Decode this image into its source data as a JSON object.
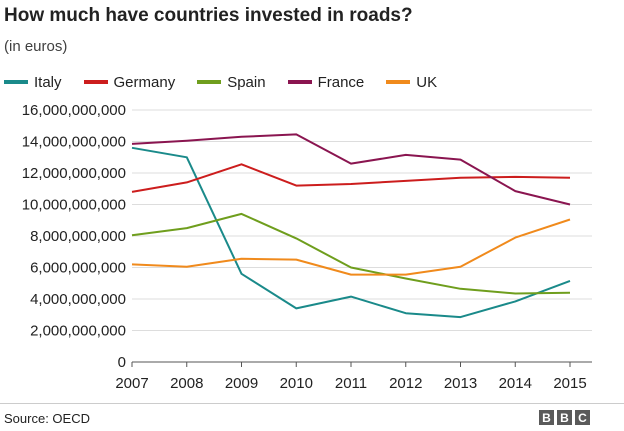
{
  "chart_data": {
    "type": "line",
    "title": "How much have countries invested in roads?",
    "subtitle": "(in euros)",
    "source": "Source: OECD",
    "logo_letters": [
      "B",
      "B",
      "C"
    ],
    "x": [
      "2007",
      "2008",
      "2009",
      "2010",
      "2011",
      "2012",
      "2013",
      "2014",
      "2015"
    ],
    "ylim": [
      0,
      16000000000
    ],
    "yticks": [
      "0",
      "2,000,000,000",
      "4,000,000,000",
      "6,000,000,000",
      "8,000,000,000",
      "10,000,000,000",
      "12,000,000,000",
      "14,000,000,000",
      "16,000,000,000"
    ],
    "ytick_values": [
      0,
      2000000000,
      4000000000,
      6000000000,
      8000000000,
      10000000000,
      12000000000,
      14000000000,
      16000000000
    ],
    "grid": true,
    "legend_position": "top-left",
    "series": [
      {
        "name": "Italy",
        "color": "#1a8a8a",
        "values": [
          13600000000,
          13000000000,
          5600000000,
          3400000000,
          4150000000,
          3100000000,
          2850000000,
          3850000000,
          5150000000
        ]
      },
      {
        "name": "Germany",
        "color": "#cc1d1d",
        "values": [
          10800000000,
          11400000000,
          12550000000,
          11200000000,
          11300000000,
          11500000000,
          11700000000,
          11750000000,
          11700000000
        ]
      },
      {
        "name": "Spain",
        "color": "#6f9e1d",
        "values": [
          8050000000,
          8500000000,
          9400000000,
          7850000000,
          6000000000,
          5300000000,
          4650000000,
          4350000000,
          4400000000
        ]
      },
      {
        "name": "France",
        "color": "#8a1550",
        "values": [
          13850000000,
          14050000000,
          14300000000,
          14450000000,
          12600000000,
          13150000000,
          12850000000,
          10850000000,
          10000000000
        ]
      },
      {
        "name": "UK",
        "color": "#f08a1c",
        "values": [
          6200000000,
          6050000000,
          6550000000,
          6500000000,
          5550000000,
          5550000000,
          6050000000,
          7900000000,
          9050000000
        ]
      }
    ]
  }
}
